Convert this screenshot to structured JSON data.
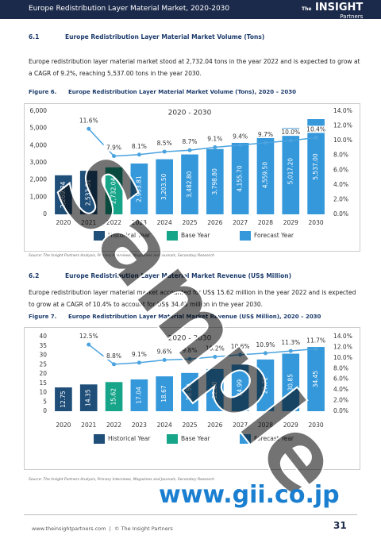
{
  "header": {
    "title": "Europe Redistribution Layer Material Market, 2020-2030",
    "logo_small": "The",
    "logo_main": "INSIGHT",
    "logo_sub": "Partners"
  },
  "sections": [
    {
      "number": "6.1",
      "title": "Europe Redistribution Layer Material Market Volume (Tons)",
      "paragraph": "Europe redistribution layer material market stood at 2,732.04 tons in the year 2022 and is expected to grow at a CAGR of 9.2%, reaching 5,537.00 tons in the year 2030.",
      "figure_label": "Figure 6.",
      "figure_title": "Europe Redistribution Layer Material Market Volume (Tons), 2020 – 2030",
      "source": "Source: The Insight Partners Analysis, Primary Interviews, Magazines and Journals, Secondary Research"
    },
    {
      "number": "6.2",
      "title": "Europe Redistribution Layer Material Market Revenue (US$ Million)",
      "paragraph": "Europe redistribution layer material market accounted for US$ 15.62 million in the year 2022 and is expected to grow at a CAGR of 10.4% to account for US$ 34.45 million in the year 2030.",
      "figure_label": "Figure 7.",
      "figure_title": "Europe Redistribution Layer Material Market Revenue (US$ Million), 2020 – 2030",
      "source": "Source: The Insight Partners Analysis, Primary Interviews, Magazines and Journals, Secondary Research"
    }
  ],
  "chart_data": [
    {
      "type": "bar",
      "title": "2020 - 2030",
      "categories": [
        "2020",
        "2021",
        "2022",
        "2023",
        "2024",
        "2025",
        "2026",
        "2027",
        "2028",
        "2029",
        "2030"
      ],
      "series": [
        {
          "name": "Historical Year",
          "color": "#1f4e79",
          "values": [
            2269.34,
            2532.31,
            null,
            null,
            null,
            null,
            null,
            null,
            null,
            null,
            null
          ],
          "value_labels": [
            "2,269.34",
            "2,532.31",
            null,
            null,
            null,
            null,
            null,
            null,
            null,
            null,
            null
          ]
        },
        {
          "name": "Base Year",
          "color": "#17a589",
          "values": [
            null,
            null,
            2732.04,
            null,
            null,
            null,
            null,
            null,
            null,
            null,
            null
          ],
          "value_labels": [
            null,
            null,
            "2,732.04",
            null,
            null,
            null,
            null,
            null,
            null,
            null,
            null
          ]
        },
        {
          "name": "Forecast Year",
          "color": "#3498db",
          "values": [
            null,
            null,
            null,
            2953.81,
            3203.5,
            3482.8,
            3798.8,
            4155.7,
            4559.5,
            5017.2,
            5537.0
          ],
          "value_labels": [
            null,
            null,
            null,
            "2,953.81",
            "3,203.50",
            "3,482.80",
            "3,798.80",
            "4,155.70",
            "4,559.50",
            "5,017.20",
            "5,537.00"
          ]
        },
        {
          "type": "line",
          "axis": "y2",
          "color": "#4aa3df",
          "values": [
            null,
            11.6,
            7.9,
            8.1,
            8.5,
            8.7,
            9.1,
            9.4,
            9.7,
            10.0,
            10.4
          ],
          "value_labels": [
            null,
            "11.6%",
            "7.9%",
            "8.1%",
            "8.5%",
            "8.7%",
            "9.1%",
            "9.4%",
            "9.7%",
            "10.0%",
            "10.4%"
          ]
        }
      ],
      "ylim": [
        0,
        6000
      ],
      "yticks": [
        0,
        {
          "value": 1000,
          "label": "1,000"
        },
        {
          "value": 2000,
          "label": "2,000"
        },
        {
          "value": 3000,
          "label": "3,000"
        },
        {
          "value": 4000,
          "label": "4,000"
        },
        {
          "value": 5000,
          "label": "5,000"
        },
        {
          "value": 6000,
          "label": "6,000"
        }
      ],
      "y2lim": [
        0,
        14
      ],
      "y2ticks": [
        {
          "value": 0,
          "label": "0.0%"
        },
        {
          "value": 2,
          "label": "2.0%"
        },
        {
          "value": 4,
          "label": "4.0%"
        },
        {
          "value": 6,
          "label": "6.0%"
        },
        {
          "value": 8,
          "label": "8.0%"
        },
        {
          "value": 10,
          "label": "10.0%"
        },
        {
          "value": 12,
          "label": "12.0%"
        },
        {
          "value": 14,
          "label": "14.0%"
        }
      ],
      "grid": false
    },
    {
      "type": "bar",
      "title": "2020 - 2030",
      "categories": [
        "2020",
        "2021",
        "2022",
        "2023",
        "2024",
        "2025",
        "2026",
        "2027",
        "2028",
        "2029",
        "2030"
      ],
      "series": [
        {
          "name": "Historical Year",
          "color": "#1f4e79",
          "values": [
            12.75,
            14.35,
            null,
            null,
            null,
            null,
            null,
            null,
            null,
            null,
            null
          ],
          "value_labels": [
            "12.75",
            "14.35",
            null,
            null,
            null,
            null,
            null,
            null,
            null,
            null,
            null
          ]
        },
        {
          "name": "Base Year",
          "color": "#17a589",
          "values": [
            null,
            null,
            15.62,
            null,
            null,
            null,
            null,
            null,
            null,
            null,
            null
          ],
          "value_labels": [
            null,
            null,
            "15.62",
            null,
            null,
            null,
            null,
            null,
            null,
            null,
            null
          ]
        },
        {
          "name": "Forecast Year",
          "color": "#3498db",
          "values": [
            null,
            null,
            null,
            17.04,
            18.67,
            20.5,
            22.6,
            24.99,
            27.72,
            30.85,
            34.45
          ],
          "value_labels": [
            null,
            null,
            null,
            "17.04",
            "18.67",
            "20.50",
            "22.60",
            "24.99",
            "27.72",
            "30.85",
            "34.45"
          ]
        },
        {
          "type": "line",
          "axis": "y2",
          "color": "#4aa3df",
          "values": [
            null,
            12.5,
            8.8,
            9.1,
            9.6,
            9.8,
            10.2,
            10.6,
            10.9,
            11.3,
            11.7
          ],
          "value_labels": [
            null,
            "12.5%",
            "8.8%",
            "9.1%",
            "9.6%",
            "9.8%",
            "10.2%",
            "10.6%",
            "10.9%",
            "11.3%",
            "11.7%"
          ]
        }
      ],
      "ylim": [
        0,
        40
      ],
      "yticks": [
        0,
        5,
        10,
        15,
        20,
        25,
        30,
        35,
        40
      ],
      "y2lim": [
        0,
        14
      ],
      "y2ticks": [
        {
          "value": 0,
          "label": "0.0%"
        },
        {
          "value": 2,
          "label": "2.0%"
        },
        {
          "value": 4,
          "label": "4.0%"
        },
        {
          "value": 6,
          "label": "6.0%"
        },
        {
          "value": 8,
          "label": "8.0%"
        },
        {
          "value": 10,
          "label": "10.0%"
        },
        {
          "value": 12,
          "label": "12.0%"
        },
        {
          "value": 14,
          "label": "14.0%"
        }
      ],
      "grid": false
    }
  ],
  "watermark": {
    "sample": "Sample",
    "site": "www.gii.co.jp"
  },
  "footer": {
    "website": "www.theinsightpartners.com",
    "separator": "|",
    "copyright": "© The Insight Partners",
    "page": "31"
  }
}
